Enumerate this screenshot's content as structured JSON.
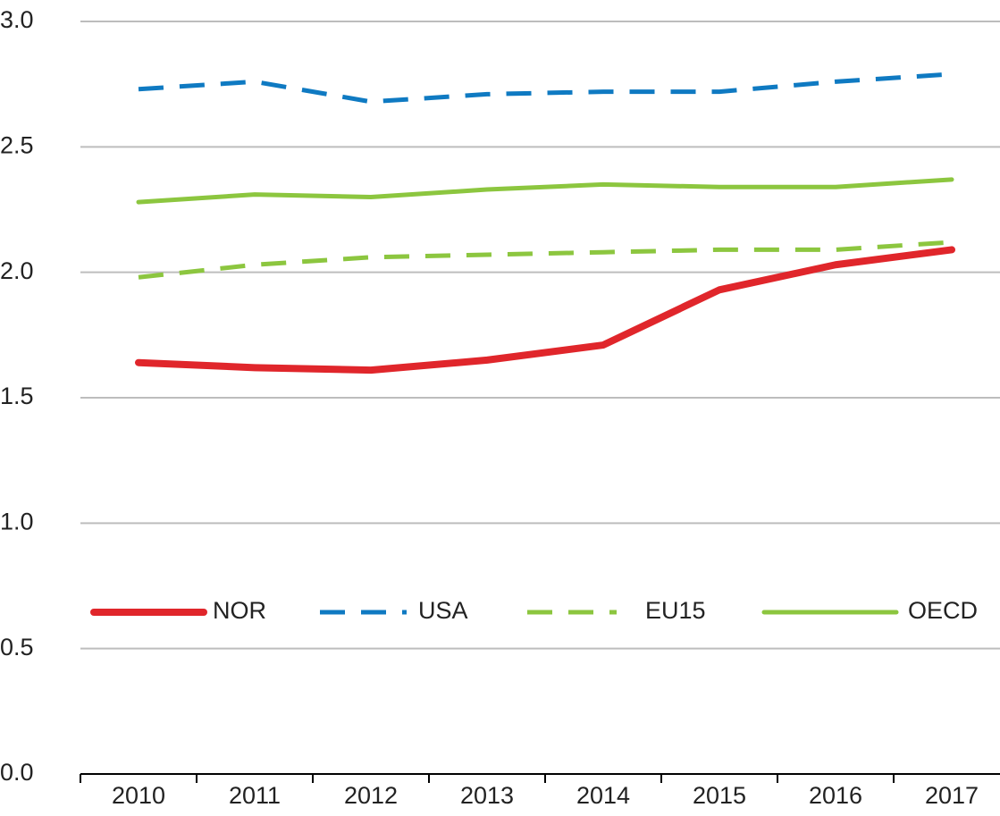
{
  "chart_data": {
    "type": "line",
    "categories": [
      "2010",
      "2011",
      "2012",
      "2013",
      "2014",
      "2015",
      "2016",
      "2017"
    ],
    "series": [
      {
        "name": "NOR",
        "color": "#e0262b",
        "style": "solid",
        "values": [
          1.64,
          1.62,
          1.61,
          1.65,
          1.71,
          1.93,
          2.03,
          2.09
        ]
      },
      {
        "name": "USA",
        "color": "#0f7ac2",
        "style": "dashed",
        "values": [
          2.73,
          2.76,
          2.68,
          2.71,
          2.72,
          2.72,
          2.76,
          2.79
        ]
      },
      {
        "name": "EU15",
        "color": "#8cc63f",
        "style": "dashed",
        "values": [
          1.98,
          2.03,
          2.06,
          2.07,
          2.08,
          2.09,
          2.09,
          2.12
        ]
      },
      {
        "name": "OECD",
        "color": "#8cc63f",
        "style": "solid",
        "values": [
          2.28,
          2.31,
          2.3,
          2.33,
          2.35,
          2.34,
          2.34,
          2.37
        ]
      }
    ],
    "ylim": [
      0,
      3
    ],
    "yticks": [
      {
        "value": 0,
        "label": "0.0"
      },
      {
        "value": 0.5,
        "label": "0.5"
      },
      {
        "value": 1,
        "label": "1.0"
      },
      {
        "value": 1.5,
        "label": "1.5"
      },
      {
        "value": 2,
        "label": "2.0"
      },
      {
        "value": 2.5,
        "label": "2.5"
      },
      {
        "value": 3,
        "label": "3.0"
      }
    ],
    "grid": true,
    "legend_position": "center"
  }
}
